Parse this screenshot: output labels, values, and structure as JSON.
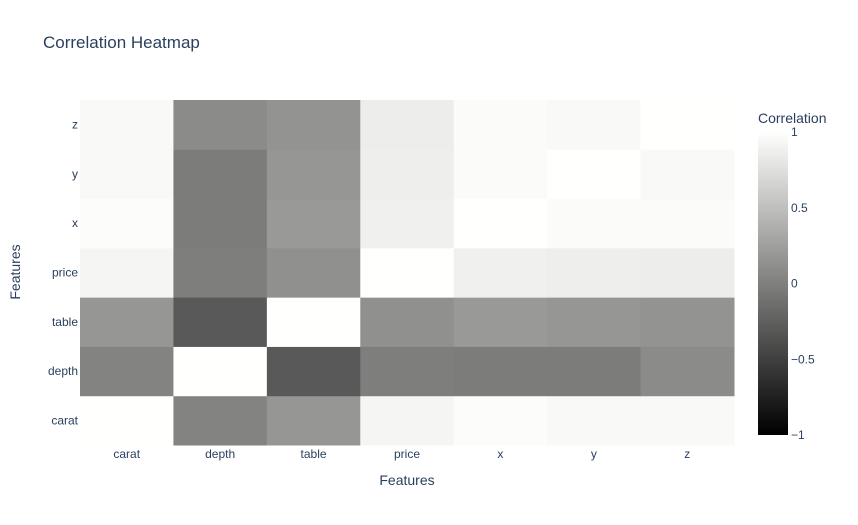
{
  "chart_data": {
    "type": "heatmap",
    "title": "Correlation Heatmap",
    "xlabel": "Features",
    "ylabel": "Features",
    "x": [
      "carat",
      "depth",
      "table",
      "price",
      "x",
      "y",
      "z"
    ],
    "y": [
      "carat",
      "depth",
      "table",
      "price",
      "x",
      "y",
      "z"
    ],
    "z": [
      [
        1.0,
        0.03,
        0.18,
        0.92,
        0.98,
        0.95,
        0.95
      ],
      [
        0.03,
        1.0,
        -0.3,
        -0.01,
        -0.03,
        -0.03,
        0.09
      ],
      [
        0.18,
        -0.3,
        1.0,
        0.13,
        0.2,
        0.18,
        0.15
      ],
      [
        0.92,
        -0.01,
        0.13,
        1.0,
        0.88,
        0.87,
        0.86
      ],
      [
        0.98,
        -0.03,
        0.2,
        0.88,
        1.0,
        0.97,
        0.97
      ],
      [
        0.95,
        -0.03,
        0.18,
        0.87,
        0.97,
        1.0,
        0.95
      ],
      [
        0.95,
        0.09,
        0.15,
        0.86,
        0.97,
        0.95,
        1.0
      ]
    ],
    "zmin": -1,
    "zmax": 1,
    "colorscale": [
      "#000000",
      "#fffffd"
    ],
    "colorbar": {
      "title": "Correlation",
      "ticks": [
        1,
        0.5,
        0,
        -0.5,
        -1
      ],
      "ticklabels": [
        "1",
        "0.5",
        "0",
        "−0.5",
        "−1"
      ]
    }
  }
}
